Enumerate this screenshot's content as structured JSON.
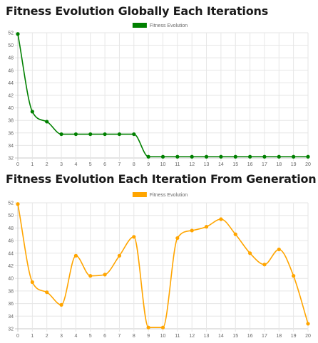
{
  "chart_data": [
    {
      "type": "line",
      "title": "Fitness Evolution Globally Each Iterations",
      "x": [
        0,
        1,
        2,
        3,
        4,
        5,
        6,
        7,
        8,
        9,
        10,
        11,
        12,
        13,
        14,
        15,
        16,
        17,
        18,
        19,
        20
      ],
      "series": [
        {
          "name": "Fitness Evolution",
          "color": "#008000",
          "values": [
            51.8,
            39.4,
            37.8,
            35.8,
            35.8,
            35.8,
            35.8,
            35.8,
            35.8,
            32.2,
            32.2,
            32.2,
            32.2,
            32.2,
            32.2,
            32.2,
            32.2,
            32.2,
            32.2,
            32.2,
            32.2
          ]
        }
      ],
      "yticks": [
        32,
        34,
        36,
        38,
        40,
        42,
        44,
        46,
        48,
        50,
        52
      ],
      "ylim": [
        32,
        52
      ],
      "grid": true,
      "legend": "top-center",
      "xlabel": "",
      "ylabel": ""
    },
    {
      "type": "line",
      "title": "Fitness Evolution Each Iteration From Generation",
      "x": [
        0,
        1,
        2,
        3,
        4,
        5,
        6,
        7,
        8,
        9,
        10,
        11,
        12,
        13,
        14,
        15,
        16,
        17,
        18,
        19,
        20
      ],
      "series": [
        {
          "name": "Fitness Evolution",
          "color": "#FFA500",
          "values": [
            51.8,
            39.4,
            37.8,
            35.8,
            43.6,
            40.4,
            40.6,
            43.6,
            46.6,
            32.2,
            32.2,
            46.4,
            47.6,
            48.2,
            49.4,
            47.0,
            44.0,
            42.2,
            44.6,
            40.4,
            32.8
          ]
        }
      ],
      "yticks": [
        32,
        34,
        36,
        38,
        40,
        42,
        44,
        46,
        48,
        50,
        52
      ],
      "ylim": [
        32,
        52
      ],
      "grid": true,
      "legend": "top-center",
      "xlabel": "",
      "ylabel": ""
    }
  ]
}
